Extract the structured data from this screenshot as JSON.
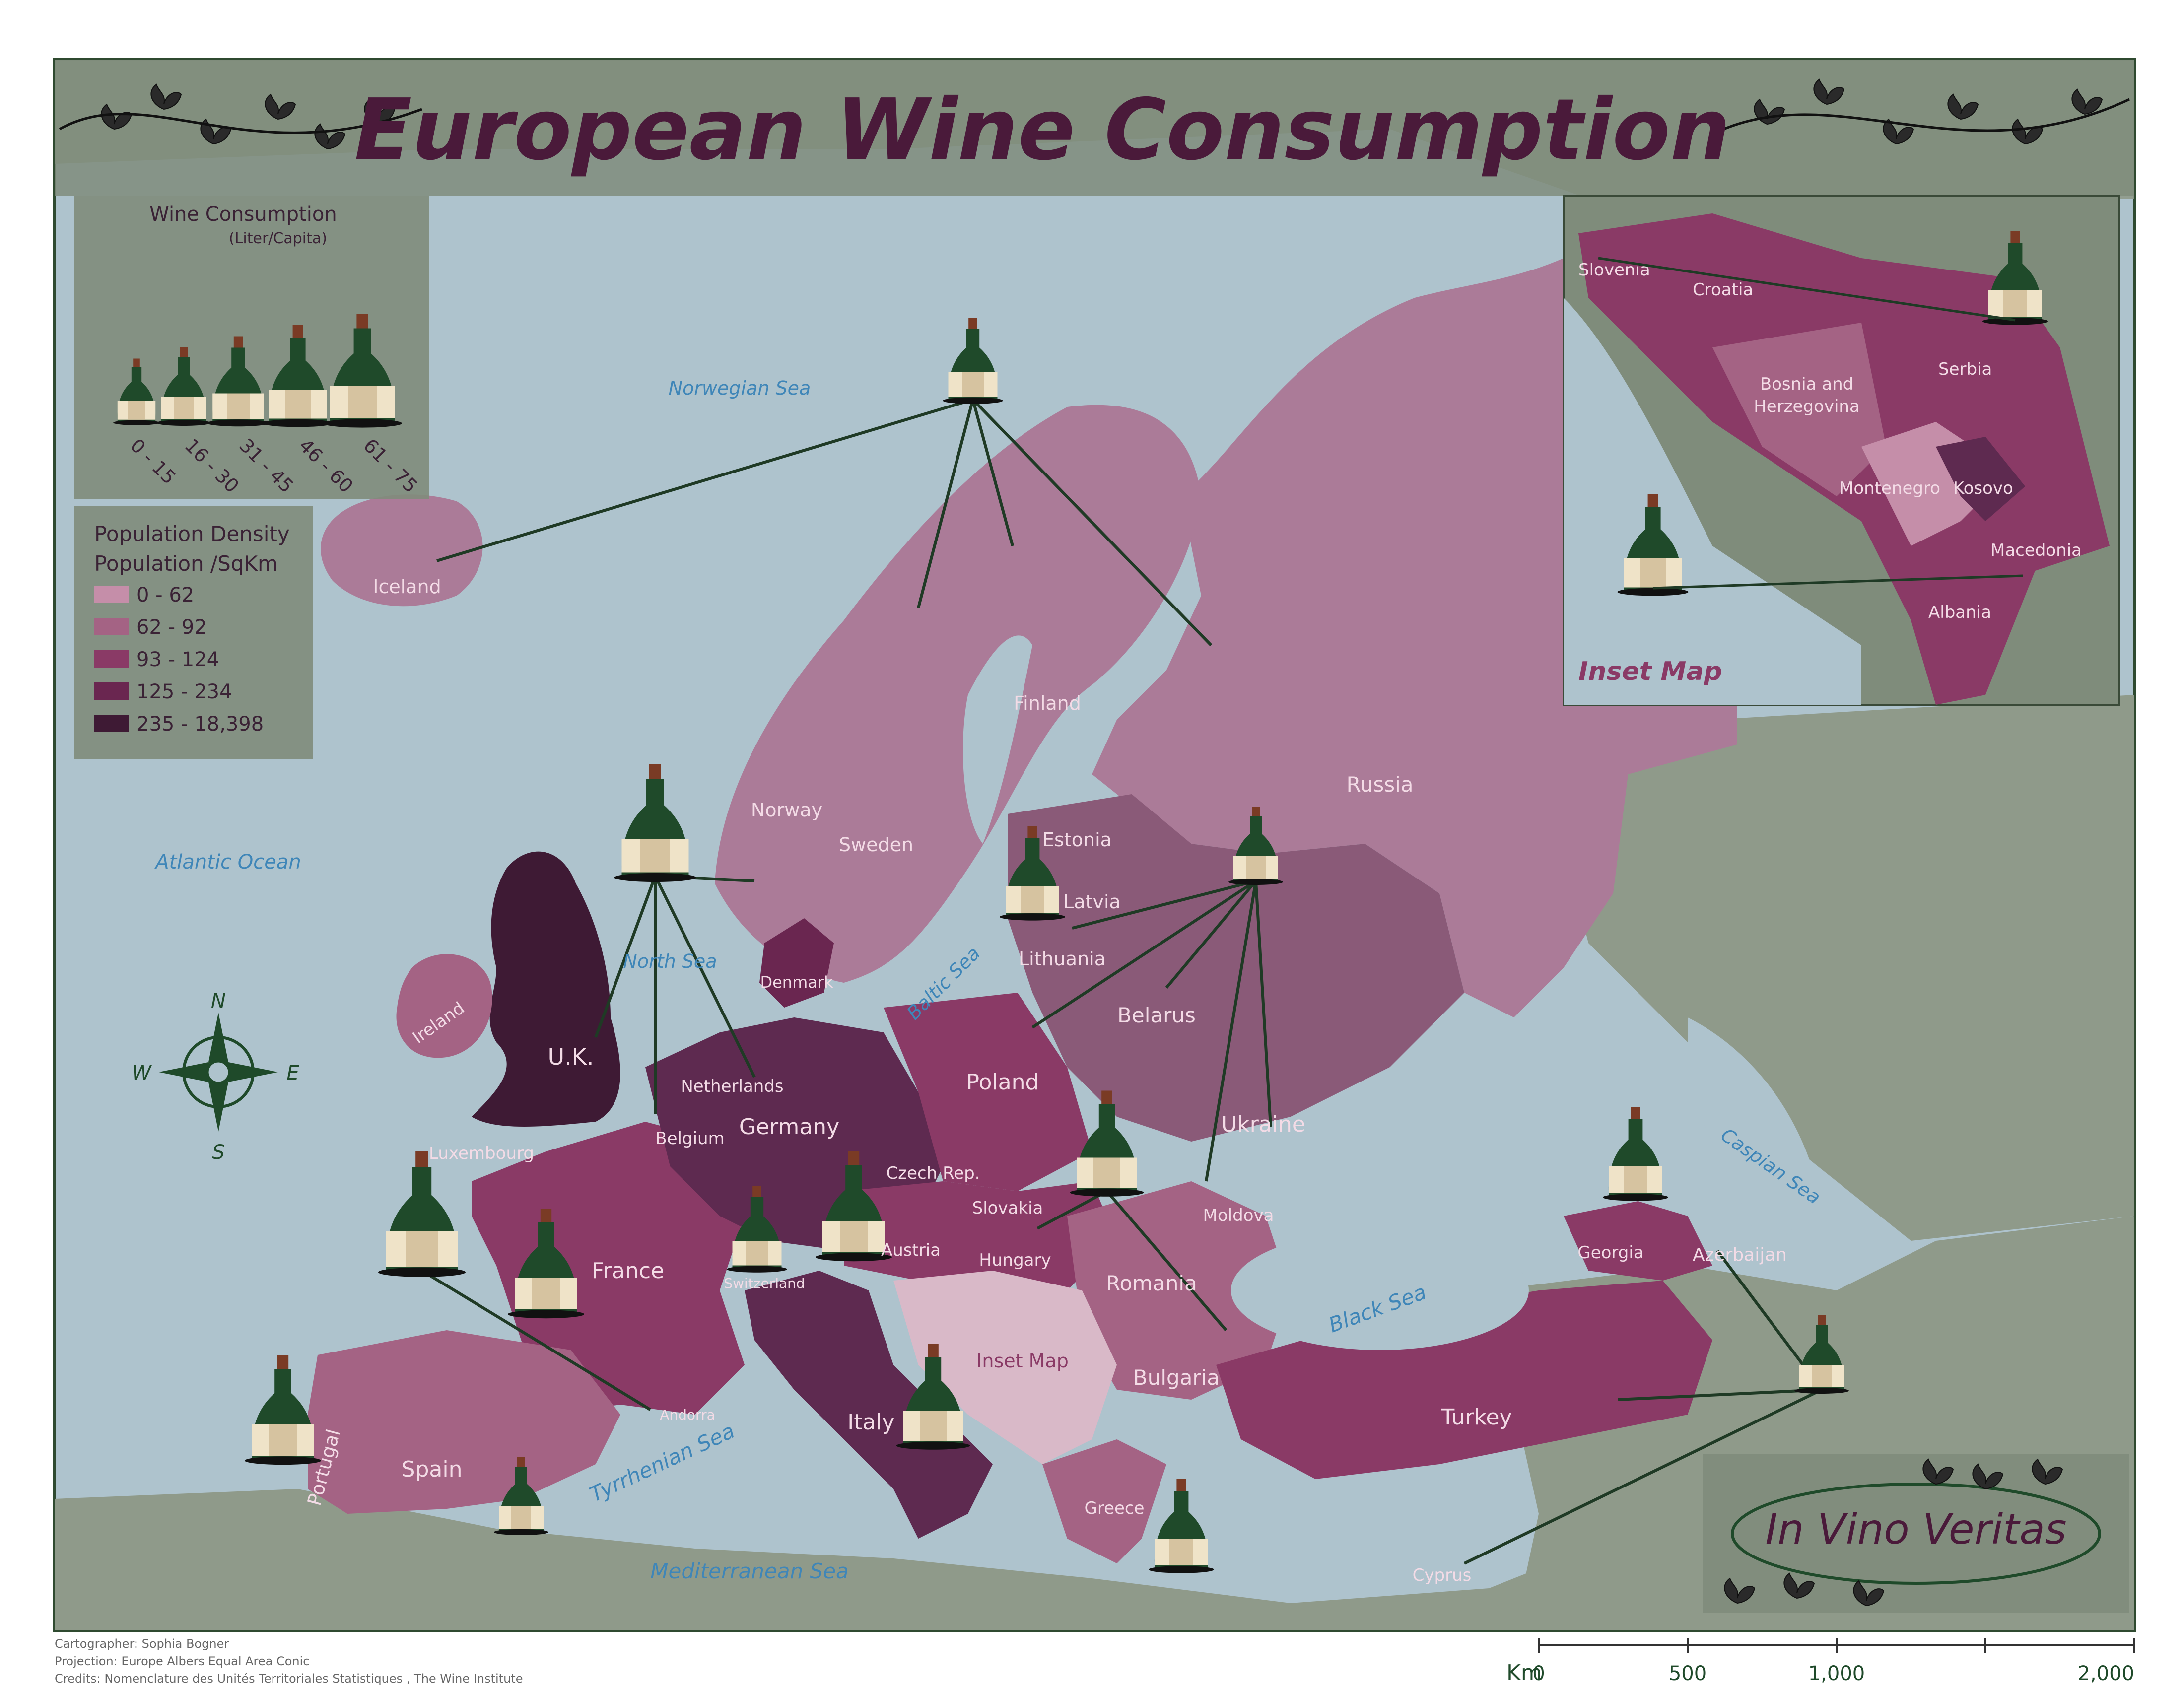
{
  "title": "European Wine Consumption",
  "legend_wine": {
    "title": "Wine Consumption",
    "subtitle": "(Liter/Capita)",
    "classes": [
      "0 - 15",
      "16 - 30",
      "31 - 45",
      "46 - 60",
      "61 - 75"
    ]
  },
  "legend_density": {
    "title_line1": "Population Density",
    "title_line2": "Population /SqKm",
    "classes": [
      {
        "label": "0 - 62",
        "color": "#c58ea9"
      },
      {
        "label": "62 - 92",
        "color": "#a46384"
      },
      {
        "label": "93 - 124",
        "color": "#8a3a66"
      },
      {
        "label": "125 - 234",
        "color": "#6a2650"
      },
      {
        "label": "235 - 18,398",
        "color": "#3e1a34"
      }
    ]
  },
  "seas": {
    "norwegian": "Norwegian Sea",
    "atlantic": "Atlantic Ocean",
    "north": "North Sea",
    "baltic": "Baltic Sea",
    "black": "Black Sea",
    "caspian": "Caspian Sea",
    "tyrrhenian": "Tyrrhenian Sea",
    "mediterranean": "Mediterranean Sea"
  },
  "countries": {
    "iceland": "Iceland",
    "norway": "Norway",
    "sweden": "Sweden",
    "finland": "Finland",
    "russia": "Russia",
    "estonia": "Estonia",
    "latvia": "Latvia",
    "lithuania": "Lithuania",
    "belarus": "Belarus",
    "poland": "Poland",
    "ukraine": "Ukraine",
    "moldova": "Moldova",
    "romania": "Romania",
    "bulgaria": "Bulgaria",
    "turkey": "Turkey",
    "georgia": "Georgia",
    "azerbaijan": "Azerbaijan",
    "cyprus": "Cyprus",
    "greece": "Greece",
    "italy": "Italy",
    "switzerland": "Switzerland",
    "austria": "Austria",
    "hungary": "Hungary",
    "slovakia": "Slovakia",
    "czech": "Czech Rep.",
    "germany": "Germany",
    "denmark": "Denmark",
    "netherlands": "Netherlands",
    "belgium": "Belgium",
    "luxembourg": "Luxembourg",
    "france": "France",
    "uk": "U.K.",
    "ireland": "Ireland",
    "spain": "Spain",
    "portugal": "Portugal",
    "andorra": "Andorra",
    "inset_map_label": "Inset Map"
  },
  "inset": {
    "slovenia": "Slovenia",
    "croatia": "Croatia",
    "bosnia_line1": "Bosnia and",
    "bosnia_line2": "Herzegovina",
    "serbia": "Serbia",
    "montenegro": "Montenegro",
    "kosovo": "Kosovo",
    "macedonia": "Macedonia",
    "albania": "Albania",
    "label": "Inset Map"
  },
  "motto": "In Vino Veritas",
  "credits": {
    "cartographer": "Cartographer: Sophia Bogner",
    "projection": "Projection: Europe Albers Equal Area Conic",
    "credits": "Credits: Nomenclature des Unités Territoriales Statistiques , The Wine Institute"
  },
  "scale": {
    "unit": "Km",
    "ticks": [
      "0",
      "500",
      "1,000",
      "2,000"
    ]
  },
  "colors": {
    "sea": "#aec3cd",
    "land_outside": "#8f9a8a",
    "panel": "#7f8c7b",
    "title": "#4a1a3a",
    "bottle_green": "#1f4a2a",
    "label_light": "#f3dbe6"
  }
}
